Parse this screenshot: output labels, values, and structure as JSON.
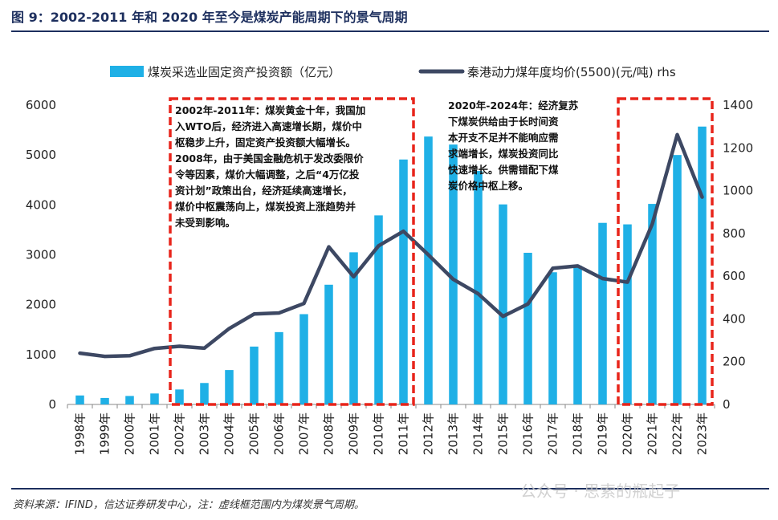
{
  "figure": {
    "title": "图 9：2002-2011 年和 2020 年至今是煤炭产能周期下的景气周期",
    "source": "资料来源：IFIND，信达证券研发中心，注：虚线框范围内为煤炭景气周期。",
    "watermark": "公众号 · 思索的瓶起子"
  },
  "chart_data": {
    "type": "bar",
    "categories": [
      "1998年",
      "1999年",
      "2000年",
      "2001年",
      "2002年",
      "2003年",
      "2004年",
      "2005年",
      "2006年",
      "2007年",
      "2008年",
      "2009年",
      "2010年",
      "2011年",
      "2012年",
      "2013年",
      "2014年",
      "2015年",
      "2016年",
      "2017年",
      "2018年",
      "2019年",
      "2020年",
      "2021年",
      "2022年",
      "2023年"
    ],
    "series": [
      {
        "name": "煤炭采选业固定资产投资额（亿元）",
        "type": "bar",
        "axis": "left",
        "color": "#1fb0e6",
        "values": [
          180,
          130,
          170,
          220,
          300,
          430,
          690,
          1160,
          1450,
          1810,
          2400,
          3050,
          3790,
          4910,
          5370,
          5210,
          4680,
          4010,
          3040,
          2650,
          2780,
          3640,
          3610,
          4020,
          5000,
          5570
        ]
      },
      {
        "name": "秦港动力煤年度均价(5500)(元/吨) rhs",
        "type": "line",
        "axis": "right",
        "color": "#3d4863",
        "values": [
          240,
          225,
          228,
          262,
          272,
          263,
          355,
          423,
          428,
          472,
          737,
          597,
          742,
          810,
          700,
          585,
          518,
          412,
          470,
          637,
          648,
          589,
          572,
          845,
          1262,
          970
        ]
      }
    ],
    "y_left": {
      "min": 0,
      "max": 6000,
      "ticks": [
        0,
        1000,
        2000,
        3000,
        4000,
        5000,
        6000
      ]
    },
    "y_right": {
      "min": 0,
      "max": 1400,
      "ticks": [
        0,
        200,
        400,
        600,
        800,
        1000,
        1200,
        1400
      ]
    },
    "legend_position": "top",
    "highlight_periods": [
      {
        "start": "2002年",
        "end": "2011年"
      },
      {
        "start": "2020年",
        "end": "2023年"
      }
    ],
    "annotations": [
      {
        "name": "annotation-2002-2011",
        "lines": [
          "2002年-2011年：煤炭黄金十年，我国加",
          "入WTO后，经济进入高速增长期，煤价中",
          "枢稳步上升，固定资产投资额大幅增长。",
          "2008年，由于美国金融危机于发改委限价",
          "令等因素，煤价大幅调整，之后“4万亿投",
          "资计划”政策出台，经济延续高速增长，",
          "煤价中枢震荡向上，煤炭投资上涨趋势并",
          "未受到影响。"
        ]
      },
      {
        "name": "annotation-2020-2024",
        "lines": [
          "2020年-2024年：经济复苏",
          "下煤炭供给由于长时间资",
          "本开支不足并不能响应需",
          "求端增长，煤炭投资同比",
          "快速增长。供需错配下煤",
          "炭价格中枢上移。"
        ]
      }
    ]
  }
}
